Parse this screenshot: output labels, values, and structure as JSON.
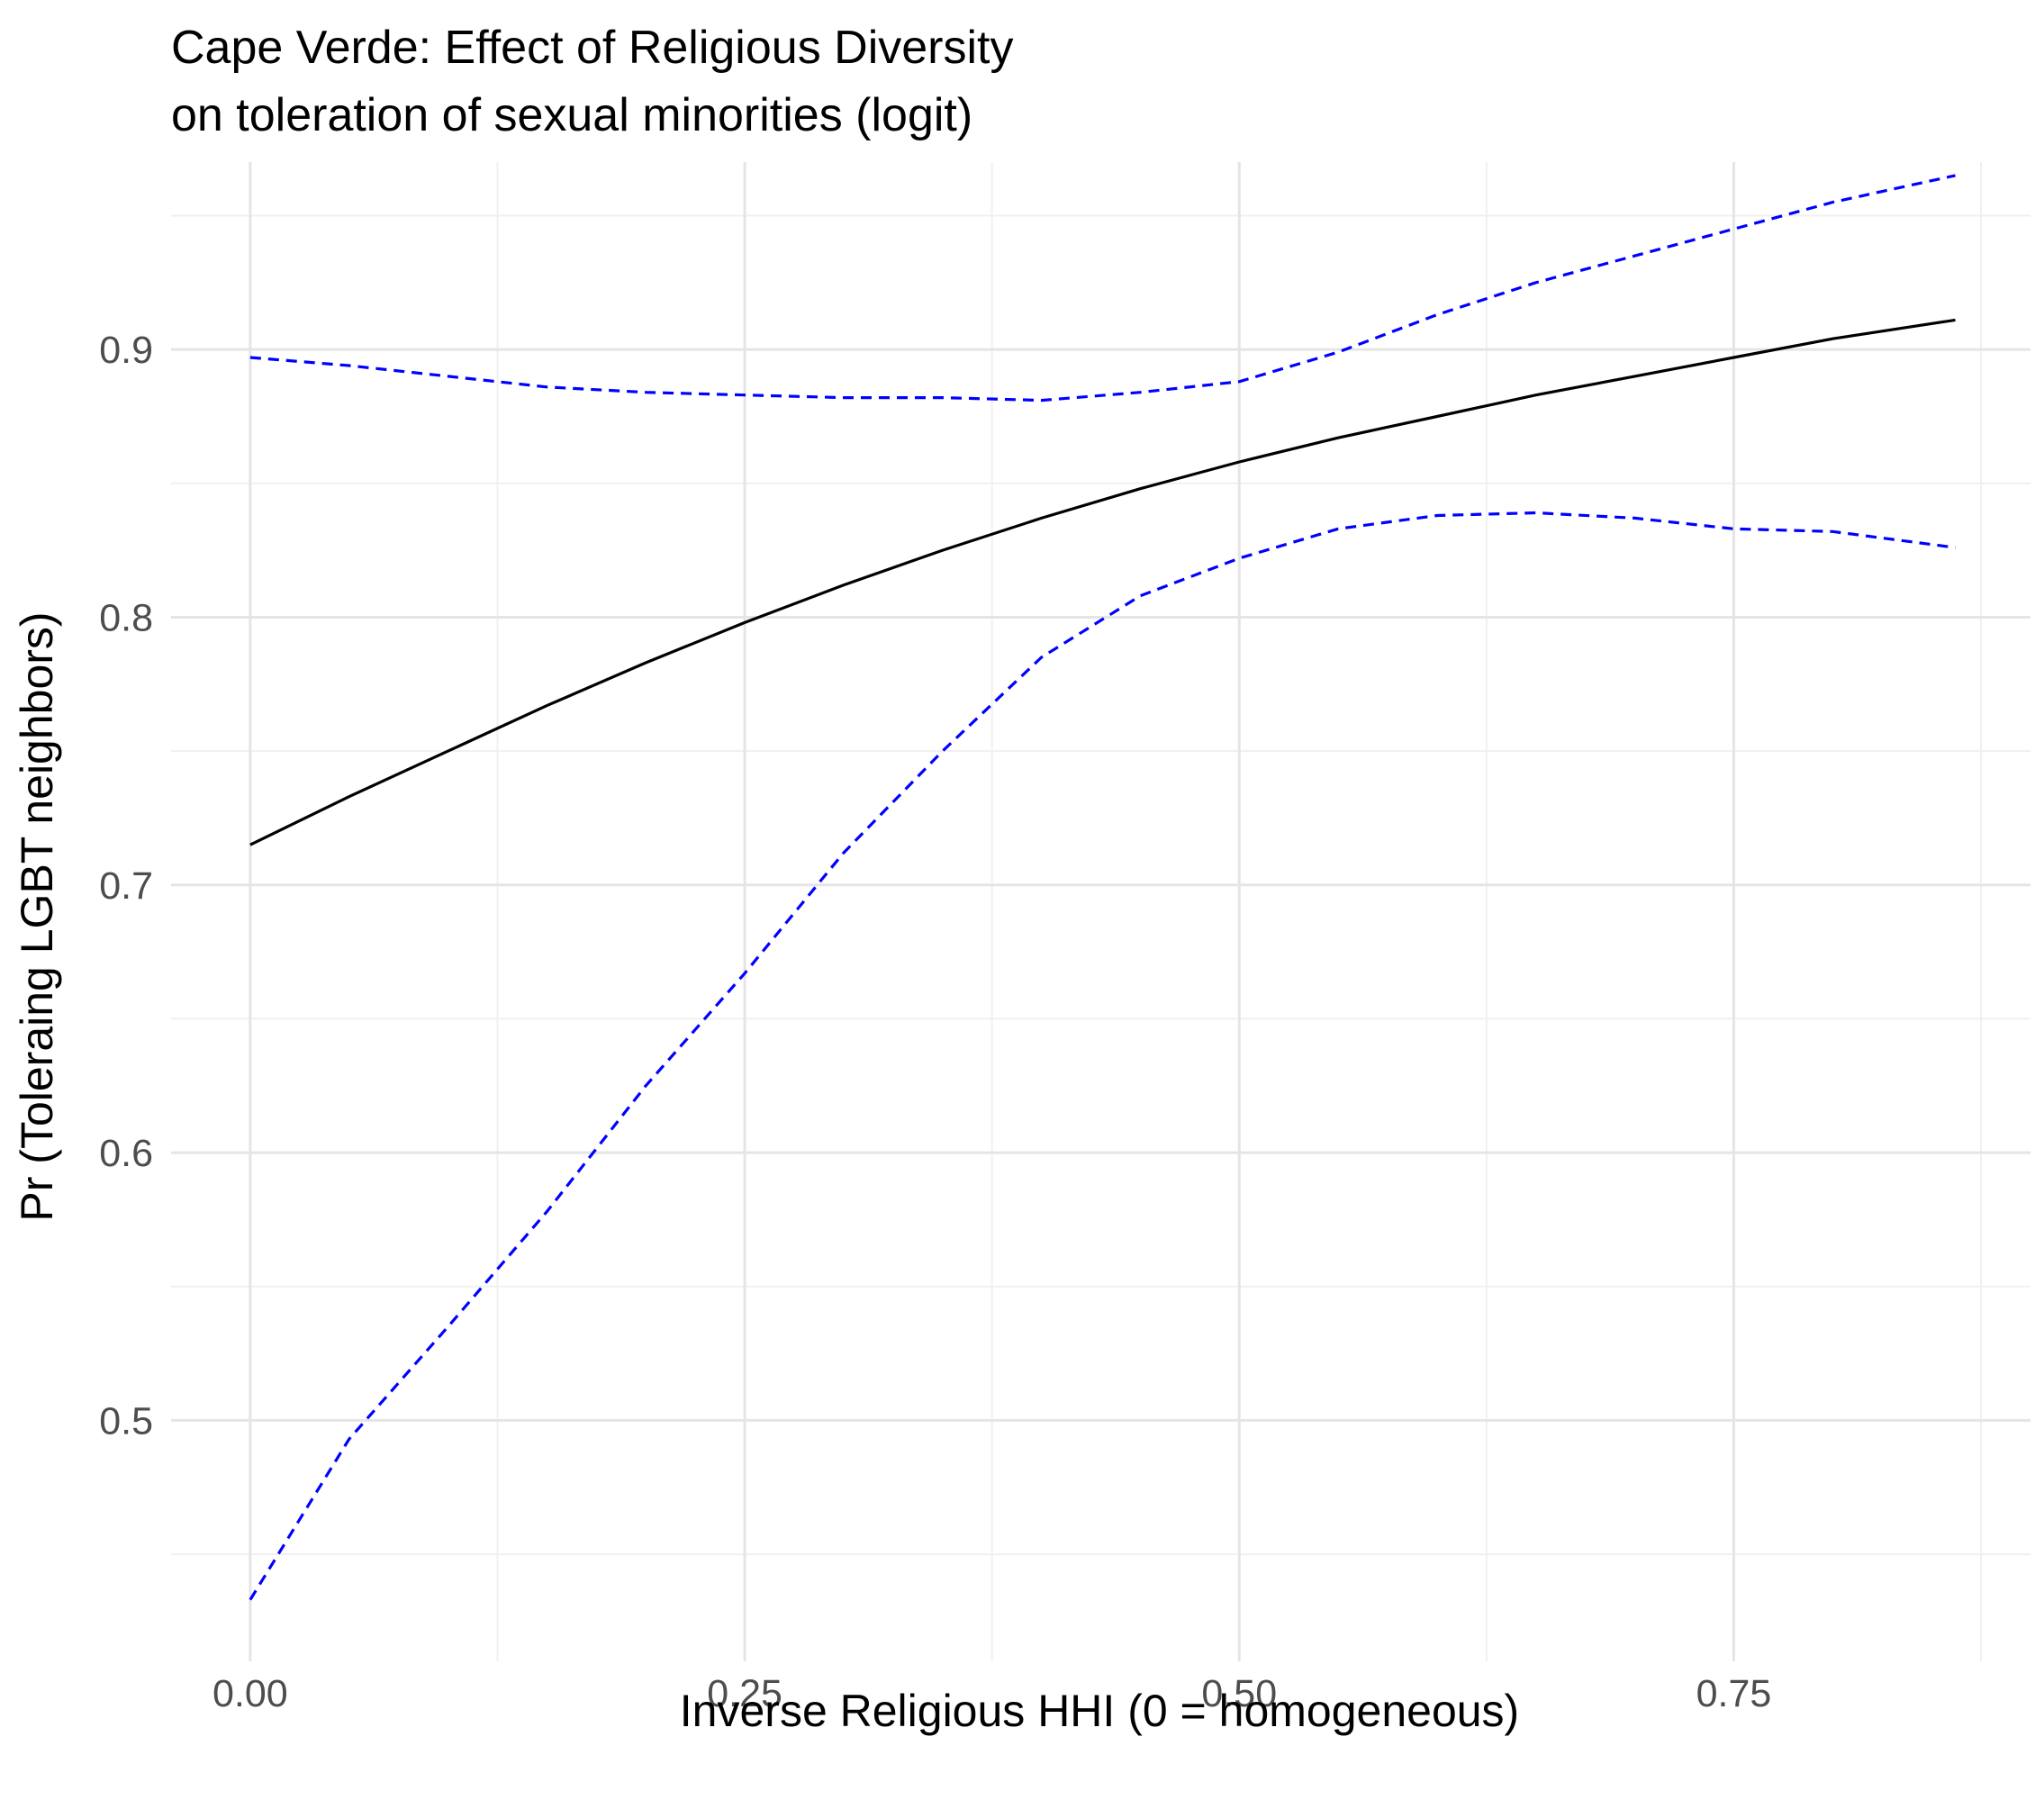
{
  "chart_data": {
    "type": "line",
    "title": "Cape Verde: Effect of Religious Diversity",
    "subtitle": "on toleration of sexual minorities (logit)",
    "xlabel": "Inverse Religious HHI (0 = homogeneous)",
    "ylabel": "Pr (Toleraing LGBT neighbors)",
    "xlim": [
      -0.04,
      0.9
    ],
    "ylim": [
      0.41,
      0.97
    ],
    "x_ticks": [
      0.0,
      0.25,
      0.5,
      0.75
    ],
    "x_tick_labels": [
      "0.00",
      "0.25",
      "0.50",
      "0.75"
    ],
    "y_ticks": [
      0.5,
      0.6,
      0.7,
      0.8,
      0.9
    ],
    "y_tick_labels": [
      "0.5",
      "0.6",
      "0.7",
      "0.8",
      "0.9"
    ],
    "grid": true,
    "series": [
      {
        "style": "solid",
        "color": "#000000",
        "x": [
          0.0,
          0.05,
          0.1,
          0.15,
          0.2,
          0.25,
          0.3,
          0.35,
          0.4,
          0.45,
          0.5,
          0.55,
          0.6,
          0.65,
          0.7,
          0.75,
          0.8,
          0.862
        ],
        "y": [
          0.715,
          0.733,
          0.75,
          0.767,
          0.783,
          0.798,
          0.812,
          0.825,
          0.837,
          0.848,
          0.858,
          0.867,
          0.875,
          0.883,
          0.89,
          0.897,
          0.904,
          0.911
        ]
      },
      {
        "style": "dashed",
        "color": "#0000ff",
        "x": [
          0.0,
          0.05,
          0.1,
          0.15,
          0.2,
          0.25,
          0.3,
          0.35,
          0.4,
          0.45,
          0.5,
          0.55,
          0.6,
          0.65,
          0.7,
          0.75,
          0.8,
          0.862
        ],
        "y": [
          0.897,
          0.894,
          0.89,
          0.886,
          0.884,
          0.883,
          0.882,
          0.882,
          0.881,
          0.884,
          0.888,
          0.899,
          0.913,
          0.925,
          0.935,
          0.945,
          0.955,
          0.965
        ]
      },
      {
        "style": "dashed",
        "color": "#0000ff",
        "x": [
          0.0,
          0.05,
          0.1,
          0.15,
          0.2,
          0.25,
          0.3,
          0.35,
          0.4,
          0.45,
          0.5,
          0.55,
          0.6,
          0.65,
          0.7,
          0.75,
          0.8,
          0.862
        ],
        "y": [
          0.433,
          0.493,
          0.535,
          0.578,
          0.625,
          0.667,
          0.712,
          0.75,
          0.785,
          0.808,
          0.822,
          0.833,
          0.838,
          0.839,
          0.837,
          0.833,
          0.832,
          0.826
        ]
      }
    ]
  }
}
